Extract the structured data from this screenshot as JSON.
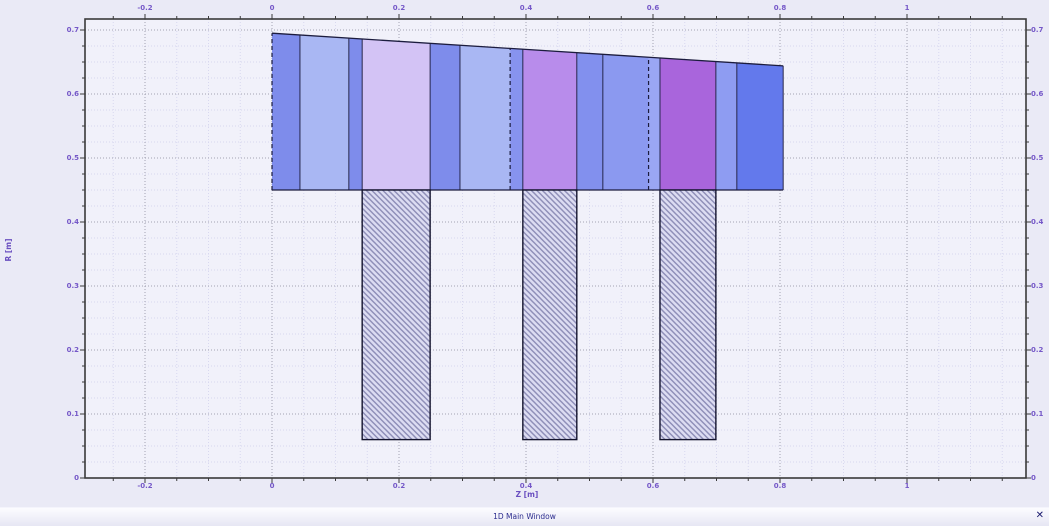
{
  "window": {
    "status_label": "1D Main Window",
    "close_icon": "✕"
  },
  "chart_data": {
    "type": "geometry-plot",
    "title": "1D Main Window",
    "xlabel": "Z [m]",
    "ylabel": "R [m]",
    "x_range": [
      -0.2945,
      1.1874
    ],
    "y_range": [
      0,
      0.7172
    ],
    "x_major_ticks": [
      -0.2,
      0,
      0.2,
      0.4,
      0.6,
      0.8,
      1
    ],
    "x_major_labels": [
      "-0.2",
      "0",
      "0.2",
      "0.4",
      "0.6",
      "0.8",
      "1"
    ],
    "x_minor_step": 0.05,
    "y_major_ticks": [
      0,
      0.1,
      0.2,
      0.3,
      0.4,
      0.5,
      0.6,
      0.7
    ],
    "y_major_labels": [
      "0",
      "0.1",
      "0.2",
      "0.3",
      "0.4",
      "0.5",
      "0.6",
      "0.7"
    ],
    "y_minor_step": 0.025,
    "grid": "on",
    "structure": {
      "base_r": 0.45,
      "top_profile": {
        "z": [
          0,
          0.805
        ],
        "r": [
          0.695,
          0.644
        ]
      },
      "slices": [
        {
          "z0": 0.0,
          "z1": 0.044,
          "color": "#7e8ceb"
        },
        {
          "z0": 0.044,
          "z1": 0.121,
          "color": "#a9b7f3"
        },
        {
          "z0": 0.121,
          "z1": 0.142,
          "color": "#7e8ceb"
        },
        {
          "z0": 0.142,
          "z1": 0.249,
          "color": "#d3c3f5"
        },
        {
          "z0": 0.249,
          "z1": 0.296,
          "color": "#7e8ceb"
        },
        {
          "z0": 0.296,
          "z1": 0.375,
          "color": "#a9b7f3"
        },
        {
          "z0": 0.375,
          "z1": 0.395,
          "color": "#8793ef"
        },
        {
          "z0": 0.395,
          "z1": 0.48,
          "color": "#b88ceb"
        },
        {
          "z0": 0.48,
          "z1": 0.521,
          "color": "#8290ee"
        },
        {
          "z0": 0.521,
          "z1": 0.593,
          "color": "#8b99f0"
        },
        {
          "z0": 0.593,
          "z1": 0.611,
          "color": "#9aa6f3"
        },
        {
          "z0": 0.611,
          "z1": 0.699,
          "color": "#a965dc"
        },
        {
          "z0": 0.699,
          "z1": 0.732,
          "color": "#8e9cf2"
        },
        {
          "z0": 0.732,
          "z1": 0.805,
          "color": "#6379ec"
        }
      ],
      "solid_boundaries_z": [
        0.044,
        0.121,
        0.142,
        0.249,
        0.296,
        0.395,
        0.48,
        0.521,
        0.611,
        0.699,
        0.732,
        0.805
      ],
      "dashed_boundaries_z": [
        0,
        0.375,
        0.593
      ],
      "hatched_blocks": [
        {
          "z0": 0.142,
          "z1": 0.249,
          "r0": 0.06,
          "r1": 0.45
        },
        {
          "z0": 0.395,
          "z1": 0.48,
          "r0": 0.06,
          "r1": 0.45
        },
        {
          "z0": 0.611,
          "z1": 0.699,
          "r0": 0.06,
          "r1": 0.45
        }
      ]
    },
    "colors": {
      "canvas_bg": "#eaeaf6",
      "plot_bg": "#f1f1fa",
      "grid_major": "#a2a2b2",
      "grid_minor": "#d8d8ef",
      "axis": "#3a3a3a",
      "tick_label": "#7558c8",
      "axis_title": "#6a4fc0",
      "structure_line": "#26264c",
      "structure_edge": "#1c1c3e",
      "hatch_line": "#8f8fb8",
      "hatch_bg": "#dcdcf2",
      "status_text": "#2d2d8f",
      "close_icon": "#1a1a6e"
    }
  }
}
